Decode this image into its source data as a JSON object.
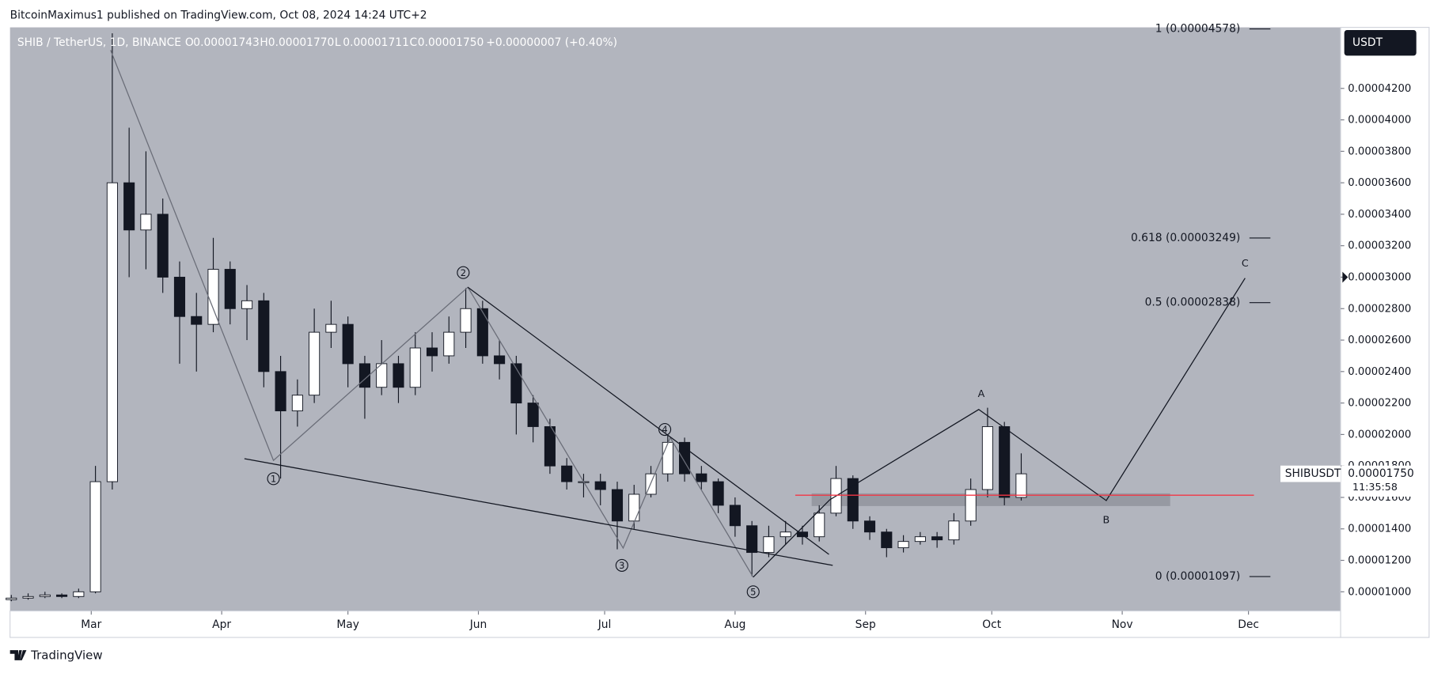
{
  "header": {
    "publisher": "BitcoinMaximus1 published on TradingView.com, Oct 08, 2024 14:24 UTC+2",
    "brand": "TradingView"
  },
  "chart_data": {
    "type": "candlestick",
    "symbol": "SHIB / TetherUS, 1D, BINANCE",
    "ohlc_header": [
      {
        "key": "O",
        "value": "0.00001743"
      },
      {
        "key": "H",
        "value": "0.00001770"
      },
      {
        "key": "L",
        "value": "0.00001711"
      },
      {
        "key": "C",
        "value": "0.00001750"
      }
    ],
    "change": "+0.00000007 (+0.40%)",
    "currency": "USDT",
    "ticker": "SHIBUSDT",
    "last_price": {
      "value": 1.75e-05,
      "label": "0.00001750"
    },
    "countdown": "11:35:58",
    "background": "#b2b5be",
    "up_color": "#ffffff",
    "down_color": "#131722",
    "x": [
      0,
      4,
      8,
      12,
      16,
      20,
      24,
      28,
      32,
      36,
      40,
      44,
      48,
      52,
      56,
      60,
      64,
      68,
      72,
      76,
      80,
      84,
      88,
      92,
      96,
      100,
      104,
      108,
      112,
      116,
      120,
      124,
      128,
      132,
      136,
      140,
      144,
      148,
      152,
      156,
      160,
      164,
      168,
      172,
      176,
      180,
      184,
      188,
      192,
      196,
      200,
      204,
      208,
      212,
      216,
      220,
      224,
      228,
      232,
      236,
      240
    ],
    "open": [
      9.5e-06,
      9.6e-06,
      9.7e-06,
      9.8e-06,
      9.7e-06,
      1e-05,
      1.7e-05,
      3.6e-05,
      3.3e-05,
      3.4e-05,
      3e-05,
      2.75e-05,
      2.7e-05,
      3.05e-05,
      2.8e-05,
      2.85e-05,
      2.4e-05,
      2.15e-05,
      2.25e-05,
      2.65e-05,
      2.7e-05,
      2.45e-05,
      2.3e-05,
      2.45e-05,
      2.3e-05,
      2.55e-05,
      2.5e-05,
      2.65e-05,
      2.8e-05,
      2.5e-05,
      2.45e-05,
      2.2e-05,
      2.05e-05,
      1.8e-05,
      1.7e-05,
      1.7e-05,
      1.65e-05,
      1.45e-05,
      1.62e-05,
      1.75e-05,
      1.95e-05,
      1.75e-05,
      1.7e-05,
      1.55e-05,
      1.42e-05,
      1.25e-05,
      1.35e-05,
      1.38e-05,
      1.35e-05,
      1.5e-05,
      1.72e-05,
      1.45e-05,
      1.38e-05,
      1.28e-05,
      1.32e-05,
      1.35e-05,
      1.33e-05,
      1.45e-05,
      1.65e-05,
      2.05e-05,
      1.6e-05
    ],
    "high": [
      9.8e-06,
      9.9e-06,
      1e-05,
      9.9e-06,
      1.02e-05,
      1.8e-05,
      4.55e-05,
      3.95e-05,
      3.8e-05,
      3.5e-05,
      3.1e-05,
      2.9e-05,
      3.25e-05,
      3.1e-05,
      2.95e-05,
      2.9e-05,
      2.5e-05,
      2.35e-05,
      2.8e-05,
      2.85e-05,
      2.75e-05,
      2.5e-05,
      2.6e-05,
      2.5e-05,
      2.65e-05,
      2.65e-05,
      2.75e-05,
      2.93e-05,
      2.85e-05,
      2.6e-05,
      2.5e-05,
      2.25e-05,
      2.1e-05,
      1.85e-05,
      1.75e-05,
      1.75e-05,
      1.7e-05,
      1.68e-05,
      1.8e-05,
      2e-05,
      1.98e-05,
      1.8e-05,
      1.72e-05,
      1.6e-05,
      1.45e-05,
      1.42e-05,
      1.45e-05,
      1.42e-05,
      1.55e-05,
      1.8e-05,
      1.74e-05,
      1.48e-05,
      1.4e-05,
      1.36e-05,
      1.38e-05,
      1.38e-05,
      1.5e-05,
      1.72e-05,
      2.17e-05,
      2.08e-05,
      1.88e-05
    ],
    "low": [
      9.4e-06,
      9.5e-06,
      9.6e-06,
      9.6e-06,
      9.6e-06,
      9.9e-06,
      1.65e-05,
      3e-05,
      3.05e-05,
      2.9e-05,
      2.45e-05,
      2.4e-05,
      2.65e-05,
      2.7e-05,
      2.6e-05,
      2.3e-05,
      1.72e-05,
      2.05e-05,
      2.2e-05,
      2.55e-05,
      2.3e-05,
      2.1e-05,
      2.25e-05,
      2.2e-05,
      2.25e-05,
      2.4e-05,
      2.45e-05,
      2.55e-05,
      2.45e-05,
      2.35e-05,
      2e-05,
      1.95e-05,
      1.75e-05,
      1.65e-05,
      1.6e-05,
      1.55e-05,
      1.27e-05,
      1.4e-05,
      1.6e-05,
      1.7e-05,
      1.7e-05,
      1.65e-05,
      1.5e-05,
      1.35e-05,
      1.1e-05,
      1.22e-05,
      1.3e-05,
      1.3e-05,
      1.32e-05,
      1.48e-05,
      1.4e-05,
      1.33e-05,
      1.22e-05,
      1.25e-05,
      1.3e-05,
      1.28e-05,
      1.3e-05,
      1.42e-05,
      1.6e-05,
      1.55e-05,
      1.58e-05
    ],
    "close": [
      9.6e-06,
      9.7e-06,
      9.8e-06,
      9.7e-06,
      1e-05,
      1.7e-05,
      3.6e-05,
      3.3e-05,
      3.4e-05,
      3e-05,
      2.75e-05,
      2.7e-05,
      3.05e-05,
      2.8e-05,
      2.85e-05,
      2.4e-05,
      2.15e-05,
      2.25e-05,
      2.65e-05,
      2.7e-05,
      2.45e-05,
      2.3e-05,
      2.45e-05,
      2.3e-05,
      2.55e-05,
      2.5e-05,
      2.65e-05,
      2.8e-05,
      2.5e-05,
      2.45e-05,
      2.2e-05,
      2.05e-05,
      1.8e-05,
      1.7e-05,
      1.7e-05,
      1.65e-05,
      1.45e-05,
      1.62e-05,
      1.75e-05,
      1.95e-05,
      1.75e-05,
      1.7e-05,
      1.55e-05,
      1.42e-05,
      1.25e-05,
      1.35e-05,
      1.38e-05,
      1.35e-05,
      1.5e-05,
      1.72e-05,
      1.45e-05,
      1.38e-05,
      1.28e-05,
      1.32e-05,
      1.35e-05,
      1.33e-05,
      1.45e-05,
      1.65e-05,
      2.05e-05,
      1.6e-05,
      1.75e-05
    ],
    "xlim": [
      -0.3,
      315.9
    ],
    "xticks": [
      {
        "value": 19,
        "label": "Mar"
      },
      {
        "value": 50,
        "label": "Apr"
      },
      {
        "value": 80,
        "label": "May"
      },
      {
        "value": 111,
        "label": "Jun"
      },
      {
        "value": 141,
        "label": "Jul"
      },
      {
        "value": 172,
        "label": "Aug"
      },
      {
        "value": 203,
        "label": "Sep"
      },
      {
        "value": 233,
        "label": "Oct"
      },
      {
        "value": 264,
        "label": "Nov"
      },
      {
        "value": 294,
        "label": "Dec"
      }
    ],
    "ylim": [
      8.78e-06,
      4.588e-05
    ],
    "yticks": [
      {
        "value": 1e-05,
        "label": "0.00001000"
      },
      {
        "value": 1.2e-05,
        "label": "0.00001200"
      },
      {
        "value": 1.4e-05,
        "label": "0.00001400"
      },
      {
        "value": 1.6e-05,
        "label": "0.00001600"
      },
      {
        "value": 1.8e-05,
        "label": "0.00001800"
      },
      {
        "value": 2e-05,
        "label": "0.00002000"
      },
      {
        "value": 2.2e-05,
        "label": "0.00002200"
      },
      {
        "value": 2.4e-05,
        "label": "0.00002400"
      },
      {
        "value": 2.6e-05,
        "label": "0.00002600"
      },
      {
        "value": 2.8e-05,
        "label": "0.00002800"
      },
      {
        "value": 3e-05,
        "label": "0.00003000"
      },
      {
        "value": 3.2e-05,
        "label": "0.00003200"
      },
      {
        "value": 3.4e-05,
        "label": "0.00003400"
      },
      {
        "value": 3.6e-05,
        "label": "0.00003600"
      },
      {
        "value": 3.8e-05,
        "label": "0.00003800"
      },
      {
        "value": 4e-05,
        "label": "0.00004000"
      },
      {
        "value": 4.2e-05,
        "label": "0.00004200"
      }
    ],
    "fib_levels": [
      {
        "value": 4.578e-05,
        "label": "1 (0.00004578)"
      },
      {
        "value": 3.249e-05,
        "label": "0.618 (0.00003249)"
      },
      {
        "value": 2.838e-05,
        "label": "0.5 (0.00002838)"
      },
      {
        "value": 1.097e-05,
        "label": "0 (0.00001097)"
      }
    ],
    "drawings": [
      {
        "color": "#6a6d78",
        "x": [
          23.6,
          62.3,
          108.5,
          145.4,
          156.6,
          176.3
        ],
        "y": [
          4.443e-05,
          1.835e-05,
          2.936e-05,
          1.278e-05,
          1.98e-05,
          1.093e-05
        ]
      },
      {
        "color": "#131722",
        "x": [
          55.4,
          195.2
        ],
        "y": [
          1.846e-05,
          1.168e-05
        ]
      },
      {
        "color": "#131722",
        "x": [
          108.5,
          194.3
        ],
        "y": [
          2.936e-05,
          1.238e-05
        ]
      },
      {
        "color": "#131722",
        "x": [
          176.3,
          194.5,
          229.9,
          260.2,
          293.2
        ],
        "y": [
          1.093e-05,
          1.585e-05,
          2.159e-05,
          1.58e-05,
          2.994e-05
        ]
      },
      {
        "color": "#f23645",
        "x": [
          186.3,
          295.3
        ],
        "y": [
          1.614e-05,
          1.614e-05
        ]
      }
    ],
    "zone": {
      "color": "#8f929b",
      "x": [
        190.2,
        275.4
      ],
      "y": [
        1.545e-05,
        1.626e-05
      ]
    },
    "wave_labels": [
      {
        "text": "1",
        "x": 62.3,
        "y": 1.719e-05,
        "circled": true
      },
      {
        "text": "2",
        "x": 107.4,
        "y": 3.029e-05,
        "circled": true
      },
      {
        "text": "3",
        "x": 145.1,
        "y": 1.168e-05,
        "circled": true
      },
      {
        "text": "4",
        "x": 155.3,
        "y": 2.032e-05,
        "circled": true
      },
      {
        "text": "5",
        "x": 176.3,
        "y": 1e-05,
        "circled": true
      },
      {
        "text": "A",
        "x": 230.5,
        "y": 2.258e-05,
        "circled": false
      },
      {
        "text": "B",
        "x": 260.2,
        "y": 1.458e-05,
        "circled": false
      },
      {
        "text": "C",
        "x": 293.2,
        "y": 3.087e-05,
        "circled": false
      }
    ]
  }
}
